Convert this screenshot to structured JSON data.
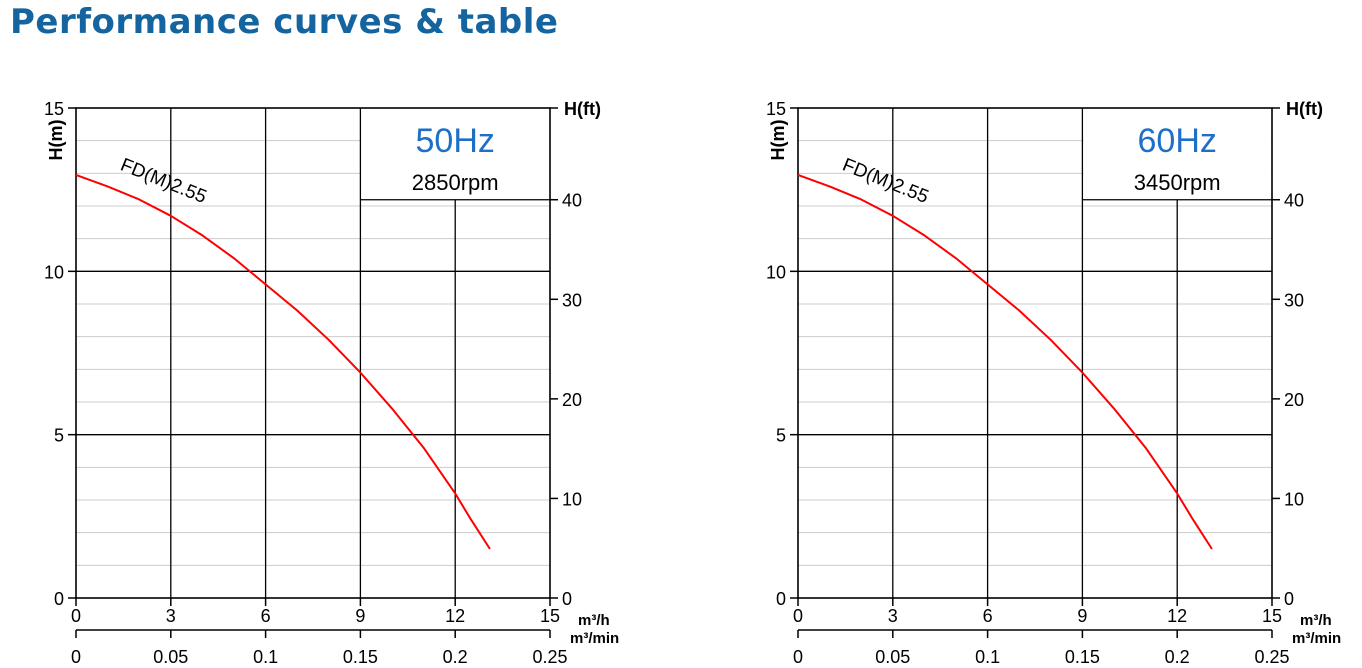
{
  "page_title": "Performance curves & table",
  "colors": {
    "title": "#1464a0",
    "curve": "#ff0000",
    "frequency_text": "#1e6fc8",
    "grid": "#000000",
    "minor_grid": "#cccccc"
  },
  "chart_data": [
    {
      "type": "line",
      "frequency_label": "50Hz",
      "rpm_label": "2850rpm",
      "y_label": "H(m)",
      "y2_label": "H(ft)",
      "x_unit_label": "m³/h",
      "x2_unit_label": "m³/min",
      "xlim": [
        0,
        15
      ],
      "ylim": [
        0,
        15
      ],
      "x_ticks": [
        "0",
        "3",
        "6",
        "9",
        "12",
        "15"
      ],
      "x2_ticks": [
        "0",
        "0.05",
        "0.1",
        "0.15",
        "0.2",
        "0.25"
      ],
      "y_ticks": [
        "0",
        "5",
        "10",
        "15"
      ],
      "y2_ticks": [
        "0",
        "10",
        "20",
        "30",
        "40"
      ],
      "grid": true,
      "series": [
        {
          "name": "FD(M)2.55",
          "x": [
            0,
            1,
            2,
            3,
            4,
            5,
            6,
            7,
            8,
            9,
            10,
            11,
            12,
            12.5,
            13.1
          ],
          "y": [
            12.95,
            12.6,
            12.2,
            11.7,
            11.1,
            10.4,
            9.6,
            8.8,
            7.9,
            6.9,
            5.8,
            4.6,
            3.2,
            2.4,
            1.5
          ]
        }
      ]
    },
    {
      "type": "line",
      "frequency_label": "60Hz",
      "rpm_label": "3450rpm",
      "y_label": "H(m)",
      "y2_label": "H(ft)",
      "x_unit_label": "m³/h",
      "x2_unit_label": "m³/min",
      "xlim": [
        0,
        15
      ],
      "ylim": [
        0,
        15
      ],
      "x_ticks": [
        "0",
        "3",
        "6",
        "9",
        "12",
        "15"
      ],
      "x2_ticks": [
        "0",
        "0.05",
        "0.1",
        "0.15",
        "0.2",
        "0.25"
      ],
      "y_ticks": [
        "0",
        "5",
        "10",
        "15"
      ],
      "y2_ticks": [
        "0",
        "10",
        "20",
        "30",
        "40"
      ],
      "grid": true,
      "series": [
        {
          "name": "FD(M)2.55",
          "x": [
            0,
            1,
            2,
            3,
            4,
            5,
            6,
            7,
            8,
            9,
            10,
            11,
            12,
            12.5,
            13.1
          ],
          "y": [
            12.95,
            12.6,
            12.2,
            11.7,
            11.1,
            10.4,
            9.6,
            8.8,
            7.9,
            6.9,
            5.8,
            4.6,
            3.2,
            2.4,
            1.5
          ]
        }
      ]
    }
  ]
}
